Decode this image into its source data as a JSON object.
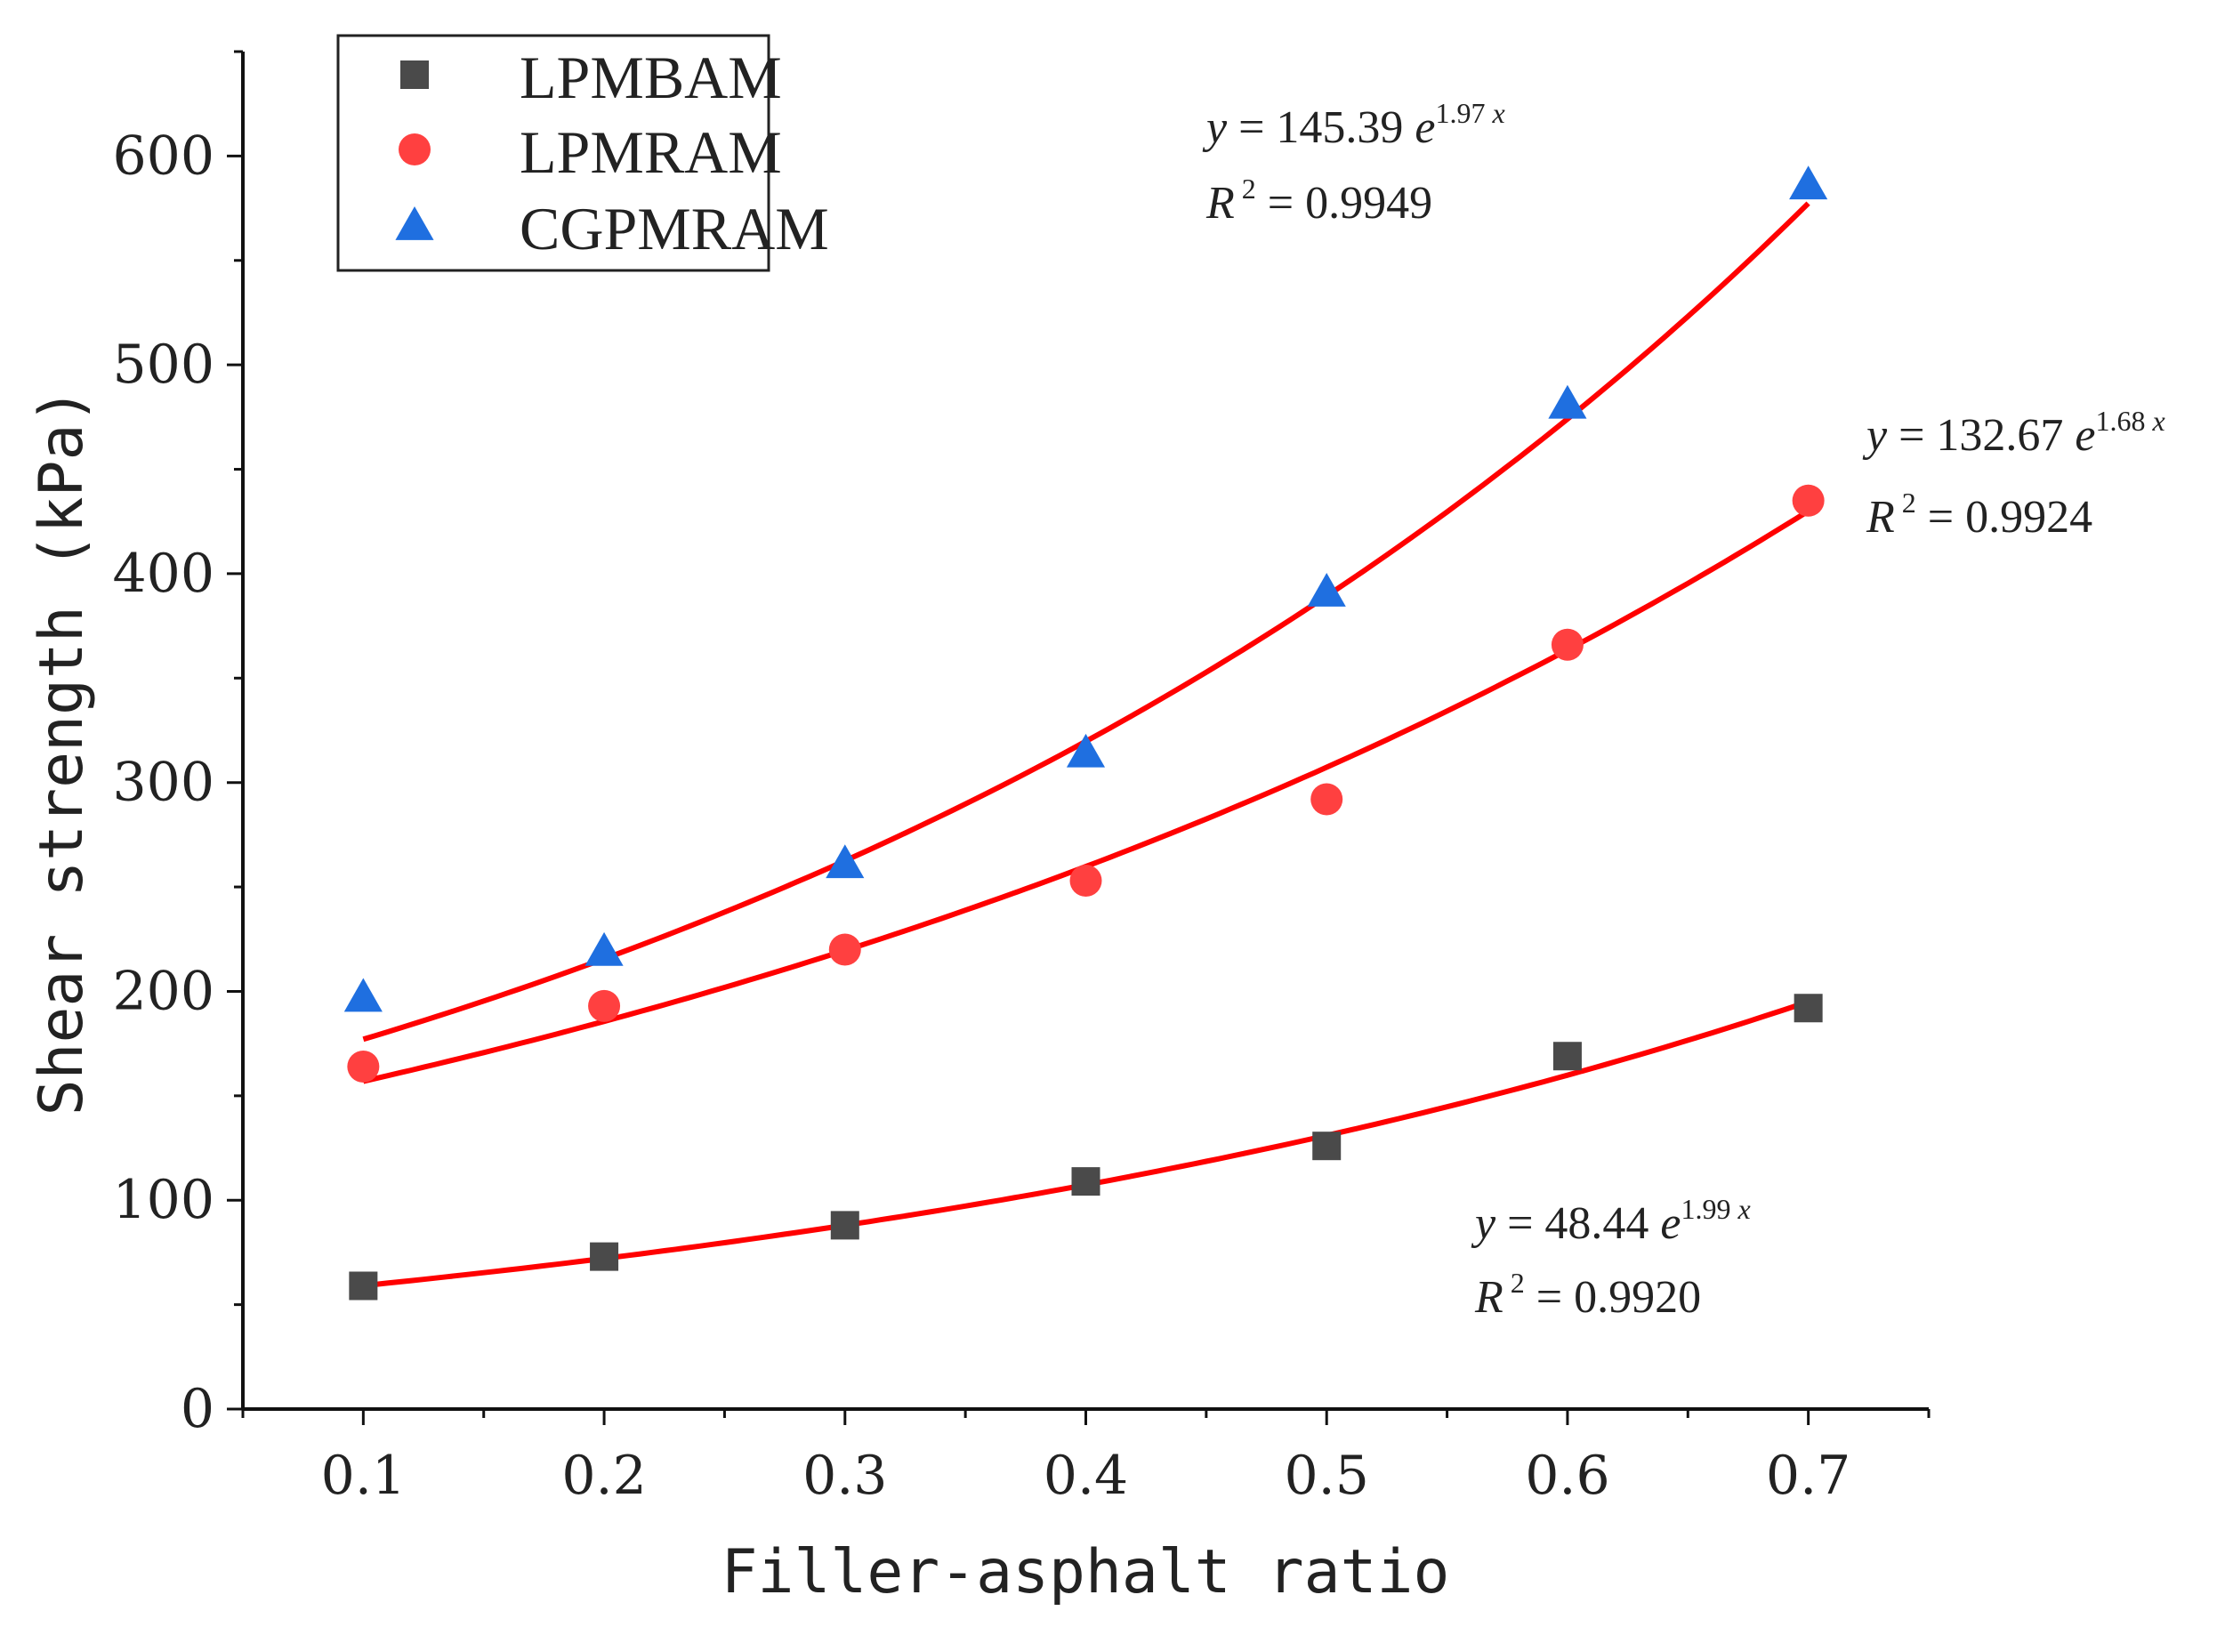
{
  "chart_data": {
    "type": "scatter",
    "title": "",
    "xlabel": "Filler-asphalt ratio",
    "ylabel": "Shear strength (kPa)",
    "xlim": [
      0.05,
      0.75
    ],
    "ylim": [
      0,
      650
    ],
    "x": [
      0.1,
      0.2,
      0.3,
      0.4,
      0.5,
      0.6,
      0.7
    ],
    "x_tick_labels": [
      "0.1",
      "0.2",
      "0.3",
      "0.4",
      "0.5",
      "0.6",
      "0.7"
    ],
    "y_ticks": [
      0,
      100,
      200,
      300,
      400,
      500,
      600
    ],
    "y_tick_labels": [
      "0",
      "100",
      "200",
      "300",
      "400",
      "500",
      "600"
    ],
    "legend_position": "top-left",
    "series": [
      {
        "name": "LPMBAM",
        "marker": "square",
        "color": "#4a4a4a",
        "values": [
          59,
          73,
          88,
          109,
          126,
          169,
          192
        ],
        "fit": {
          "a": 48.44,
          "b": 1.99,
          "r2": "0.9920"
        },
        "equation": {
          "lhs": "y",
          "eq": " = ",
          "coef": "48.44",
          "base": "e",
          "exp_num": "1.99",
          "exp_var": "x",
          "r_lhs": "R",
          "r_sup": "2",
          "r_val": " = 0.9920"
        }
      },
      {
        "name": "LPMRAM",
        "marker": "circle",
        "color": "#ff4040",
        "values": [
          164,
          193,
          220,
          253,
          292,
          366,
          435
        ],
        "fit": {
          "a": 132.67,
          "b": 1.68,
          "r2": "0.9924"
        },
        "equation": {
          "lhs": "y",
          "eq": " = ",
          "coef": "132.67",
          "base": "e",
          "exp_num": "1.68",
          "exp_var": "x",
          "r_lhs": "R",
          "r_sup": "2",
          "r_val": " = 0.9924"
        }
      },
      {
        "name": "CGPMRAM",
        "marker": "triangle",
        "color": "#1f6fe0",
        "values": [
          197,
          219,
          261,
          314,
          391,
          481,
          586
        ],
        "fit": {
          "a": 145.39,
          "b": 1.97,
          "r2": "0.9949"
        },
        "equation": {
          "lhs": "y",
          "eq": " = ",
          "coef": "145.39",
          "base": "e",
          "exp_num": "1.97",
          "exp_var": "x",
          "r_lhs": "R",
          "r_sup": "2",
          "r_val": " = 0.9949"
        }
      }
    ],
    "fit_line_color": "#ff0000"
  }
}
